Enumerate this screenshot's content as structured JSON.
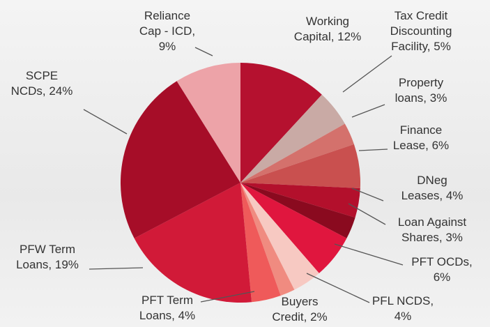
{
  "chart_data": {
    "type": "pie",
    "values": [
      12,
      5,
      3,
      6,
      4,
      3,
      6,
      4,
      2,
      4,
      19,
      24,
      9
    ],
    "value_labels": [
      [
        "Working",
        "Capital, 12%"
      ],
      [
        "Tax Credit",
        "Discounting",
        "Facility, 5%"
      ],
      [
        "Property",
        "loans, 3%"
      ],
      [
        "Finance",
        "Lease, 6%"
      ],
      [
        "DNeg",
        "Leases, 4%"
      ],
      [
        "Loan Against",
        "Shares, 3%"
      ],
      [
        "PFT OCDs,",
        "6%"
      ],
      [
        "PFL NCDS,",
        "4%"
      ],
      [
        "Buyers",
        "Credit, 2%"
      ],
      [
        "PFT Term",
        "Loans, 4%"
      ],
      [
        "PFW Term",
        "Loans, 19%"
      ],
      [
        "SCPE",
        "NCDs, 24%"
      ],
      [
        "Reliance",
        "Cap - ICD,",
        "9%"
      ]
    ],
    "colors": [
      "#b5112f",
      "#c9aaa5",
      "#d4716c",
      "#c9504f",
      "#b3102c",
      "#8a0a1f",
      "#e0163e",
      "#f7c9c2",
      "#f08b80",
      "#ef5a5a",
      "#d11a38",
      "#a60d28",
      "#eda3a8"
    ]
  }
}
